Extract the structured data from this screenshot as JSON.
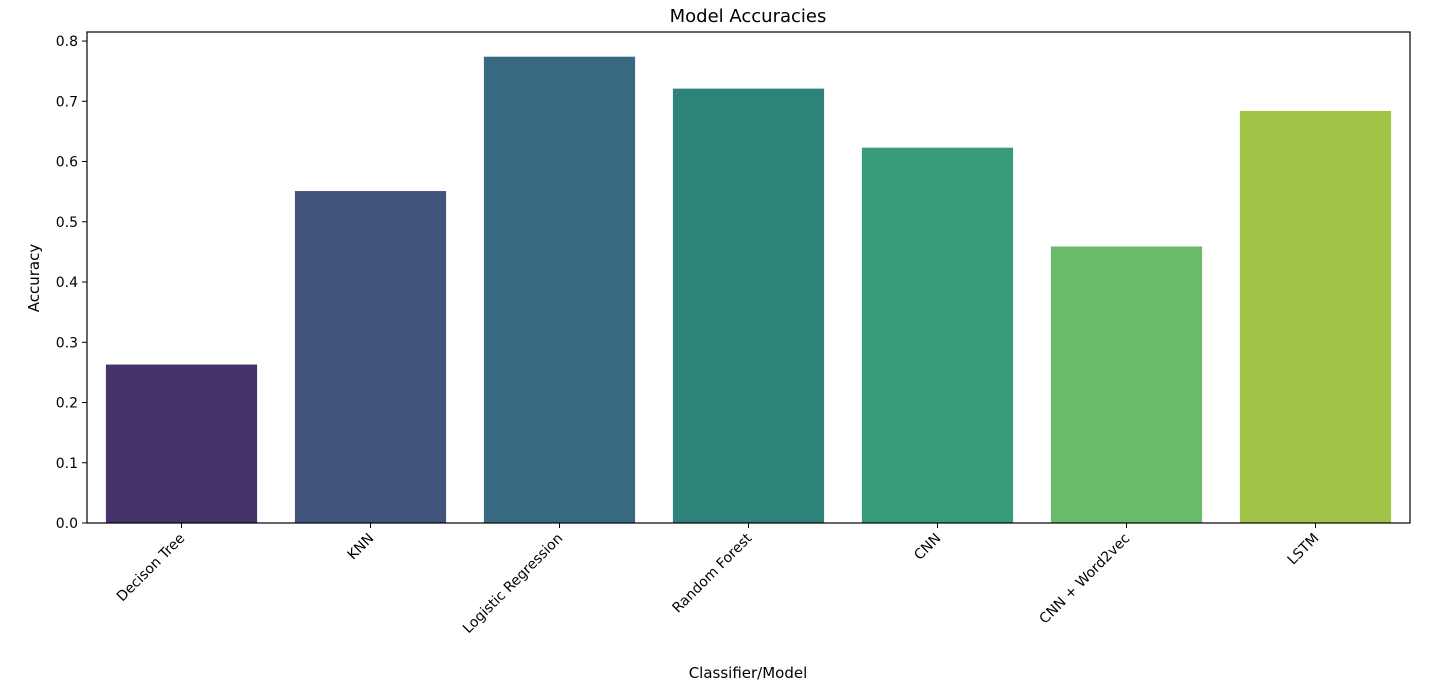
{
  "chart_data": {
    "type": "bar",
    "title": "Model Accuracies",
    "xlabel": "Classifier/Model",
    "ylabel": "Accuracy",
    "categories": [
      "Decison Tree",
      "KNN",
      "Logistic Regression",
      "Random Forest",
      "CNN",
      "CNN + Word2vec",
      "LSTM"
    ],
    "values": [
      0.263,
      0.551,
      0.774,
      0.721,
      0.623,
      0.459,
      0.684
    ],
    "colors": [
      "#46336b",
      "#42557d",
      "#376a80",
      "#2d8279",
      "#389b78",
      "#6bba6c",
      "#a1c347"
    ],
    "ylim": [
      0,
      0.815
    ],
    "yticks": [
      0.0,
      0.1,
      0.2,
      0.3,
      0.4,
      0.5,
      0.6,
      0.7,
      0.8
    ],
    "ytick_labels": [
      "0.0",
      "0.1",
      "0.2",
      "0.3",
      "0.4",
      "0.5",
      "0.6",
      "0.7",
      "0.8"
    ],
    "xtick_rotation_deg": 45,
    "grid": false,
    "legend": "none"
  }
}
